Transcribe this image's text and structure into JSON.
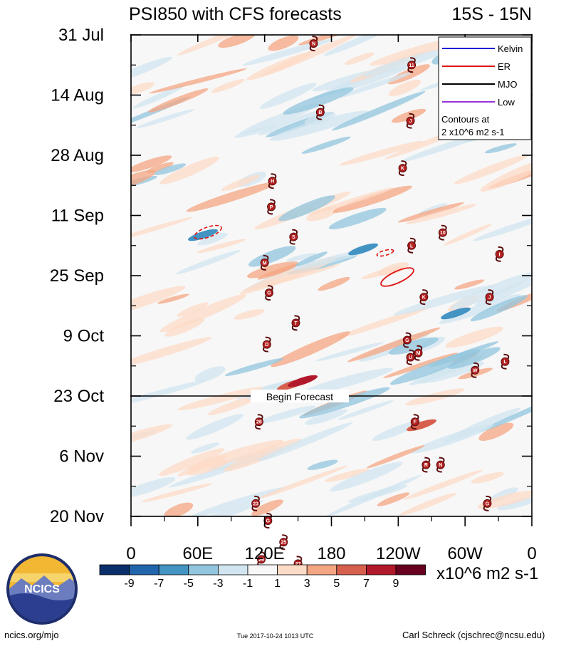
{
  "chart_data": {
    "type": "heatmap",
    "title": "PSI850 with CFS forecasts",
    "region": "15S - 15N",
    "y_ticks": [
      "31 Jul",
      "14 Aug",
      "28 Aug",
      "11 Sep",
      "25 Sep",
      "9 Oct",
      "23 Oct",
      "6 Nov",
      "20 Nov"
    ],
    "x_ticks": [
      "0",
      "60E",
      "120E",
      "180",
      "120W",
      "60W",
      "0"
    ],
    "x_range_deg": [
      0,
      360
    ],
    "forecast_label": "Begin Forecast",
    "forecast_start": "23 Oct",
    "legend": {
      "entries": [
        {
          "label": "Kelvin",
          "color": "#1f1fd6"
        },
        {
          "label": "ER",
          "color": "#e01414"
        },
        {
          "label": "MJO",
          "color": "#000000"
        },
        {
          "label": "Low",
          "color": "#9b30d9"
        }
      ],
      "note_line1": "Contours at",
      "note_line2": "2 x10^6 m2 s-1"
    },
    "colorbar": {
      "ticks": [
        "-9",
        "-7",
        "-5",
        "-3",
        "-1",
        "1",
        "3",
        "5",
        "7",
        "9"
      ],
      "colors": [
        "#0b2f6b",
        "#2166ac",
        "#4393c3",
        "#92c5de",
        "#d1e5f0",
        "#f7f7f7",
        "#fddbc7",
        "#f4a582",
        "#d6604d",
        "#b2182b",
        "#67001f"
      ],
      "units": "x10^6 m2 s-1"
    },
    "storms": [
      {
        "label": "N",
        "lon": 164,
        "day": 2
      },
      {
        "label": "11",
        "lon": 252,
        "day": 7
      },
      {
        "label": "B",
        "lon": 170,
        "day": 18
      },
      {
        "label": "J",
        "lon": 251,
        "day": 20
      },
      {
        "label": "K",
        "lon": 244,
        "day": 31
      },
      {
        "label": "H",
        "lon": 127,
        "day": 34
      },
      {
        "label": "P",
        "lon": 126,
        "day": 40
      },
      {
        "label": "S",
        "lon": 146,
        "day": 47
      },
      {
        "label": "10",
        "lon": 280,
        "day": 46
      },
      {
        "label": "L",
        "lon": 252,
        "day": 49
      },
      {
        "label": "I",
        "lon": 331,
        "day": 51
      },
      {
        "label": "M",
        "lon": 120,
        "day": 53
      },
      {
        "label": "G",
        "lon": 124,
        "day": 60
      },
      {
        "label": "K",
        "lon": 263,
        "day": 61
      },
      {
        "label": "J",
        "lon": 322,
        "day": 61
      },
      {
        "label": "T",
        "lon": 148,
        "day": 67
      },
      {
        "label": "D",
        "lon": 122,
        "day": 72
      },
      {
        "label": "G",
        "lon": 248,
        "day": 71
      },
      {
        "label": "U",
        "lon": 251,
        "day": 75
      },
      {
        "label": "M",
        "lon": 258,
        "day": 74
      },
      {
        "label": "W",
        "lon": 309,
        "day": 78
      },
      {
        "label": "L",
        "lon": 336,
        "day": 76
      },
      {
        "label": "26",
        "lon": 115,
        "day": 90
      },
      {
        "label": "F",
        "lon": 255,
        "day": 90
      },
      {
        "label": "R",
        "lon": 265,
        "day": 100
      },
      {
        "label": "N",
        "lon": 278,
        "day": 100
      },
      {
        "label": "23",
        "lon": 112,
        "day": 109
      },
      {
        "label": "G",
        "lon": 320,
        "day": 109
      },
      {
        "label": "G",
        "lon": 123,
        "day": 113
      },
      {
        "label": "25",
        "lon": 137,
        "day": 118
      },
      {
        "label": "26",
        "lon": 117,
        "day": 122
      },
      {
        "label": "27",
        "lon": 150,
        "day": 123
      }
    ]
  },
  "logo": {
    "text": "NCICS"
  },
  "footer": {
    "left": "ncics.org/mjo",
    "center": "Tue 2017-10-24 1013 UTC",
    "right": "Carl Schreck (cjschrec@ncsu.edu)"
  }
}
